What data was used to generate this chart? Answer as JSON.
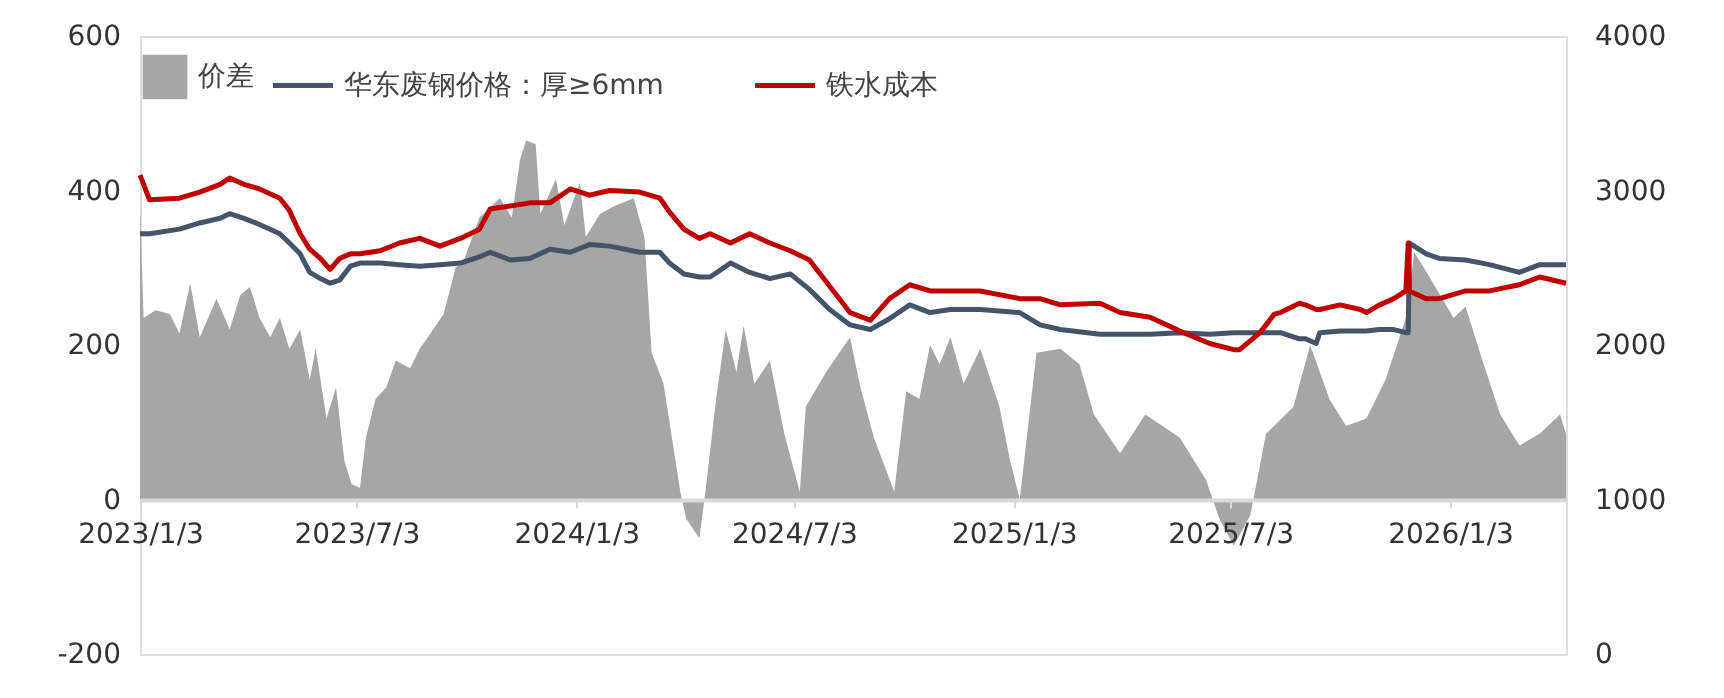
{
  "chart_data": {
    "type": "area",
    "legend": "top",
    "ylim": [
      -200,
      600
    ],
    "yticks": [
      -200,
      0,
      200,
      400,
      600
    ],
    "y2lim": [
      0,
      4000
    ],
    "y2ticks": [
      0,
      1000,
      2000,
      3000,
      4000
    ],
    "xlim": [
      "2023-01-03",
      "2026-04-10"
    ],
    "xticks": [
      {
        "value": "2023-01-03",
        "label": "2023/1/3"
      },
      {
        "value": "2023-07-03",
        "label": "2023/7/3"
      },
      {
        "value": "2024-01-03",
        "label": "2024/1/3"
      },
      {
        "value": "2024-07-03",
        "label": "2024/7/3"
      },
      {
        "value": "2025-01-03",
        "label": "2025/1/3"
      },
      {
        "value": "2025-07-03",
        "label": "2025/7/3"
      },
      {
        "value": "2026-01-03",
        "label": "2026/1/3"
      }
    ],
    "series": [
      {
        "name": "价差",
        "color": "#a6a6a6",
        "x": [
          "2023-01-03",
          "2023-01-06",
          "2023-01-16",
          "2023-01-28",
          "2023-02-05",
          "2023-02-14",
          "2023-02-22",
          "2023-03-08",
          "2023-03-19",
          "2023-03-28",
          "2023-04-05",
          "2023-04-13",
          "2023-04-22",
          "2023-04-30",
          "2023-05-08",
          "2023-05-17",
          "2023-05-25",
          "2023-05-30",
          "2023-06-08",
          "2023-06-16",
          "2023-06-23",
          "2023-06-29",
          "2023-07-06",
          "2023-07-11",
          "2023-07-19",
          "2023-07-28",
          "2023-08-05",
          "2023-08-17",
          "2023-08-25",
          "2023-09-03",
          "2023-09-14",
          "2023-09-24",
          "2023-10-01",
          "2023-10-14",
          "2023-10-31",
          "2023-11-10",
          "2023-11-17",
          "2023-11-22",
          "2023-11-30",
          "2023-12-04",
          "2023-12-17",
          "2023-12-24",
          "2024-01-06",
          "2024-01-11",
          "2024-01-23",
          "2024-02-04",
          "2024-02-20",
          "2024-02-29",
          "2024-03-06",
          "2024-03-16",
          "2024-03-30",
          "2024-04-04",
          "2024-04-15",
          "2024-04-20",
          "2024-04-29",
          "2024-05-07",
          "2024-05-16",
          "2024-05-22",
          "2024-05-31",
          "2024-06-13",
          "2024-06-25",
          "2024-07-08",
          "2024-07-13",
          "2024-07-30",
          "2024-08-19",
          "2024-08-27",
          "2024-09-08",
          "2024-09-25",
          "2024-10-05",
          "2024-10-16",
          "2024-10-25",
          "2024-11-02",
          "2024-11-11",
          "2024-11-22",
          "2024-12-06",
          "2024-12-22",
          "2024-12-31",
          "2025-01-08",
          "2025-01-22",
          "2025-02-11",
          "2025-02-27",
          "2025-03-11",
          "2025-04-02",
          "2025-04-23",
          "2025-05-22",
          "2025-06-13",
          "2025-06-24",
          "2025-07-06",
          "2025-07-20",
          "2025-08-02",
          "2025-08-25",
          "2025-09-08",
          "2025-09-24",
          "2025-10-08",
          "2025-10-25",
          "2025-11-10",
          "2025-11-27",
          "2025-12-04",
          "2025-12-14",
          "2026-01-06",
          "2026-01-16",
          "2026-01-28",
          "2026-02-14",
          "2026-03-02",
          "2026-03-19",
          "2026-04-05",
          "2026-04-10"
        ],
        "values": [
          380,
          235,
          245,
          240,
          215,
          280,
          210,
          260,
          220,
          265,
          275,
          235,
          210,
          235,
          195,
          220,
          155,
          195,
          105,
          145,
          50,
          20,
          15,
          80,
          130,
          145,
          180,
          170,
          195,
          215,
          240,
          300,
          310,
          365,
          390,
          365,
          440,
          465,
          460,
          370,
          415,
          355,
          410,
          340,
          370,
          380,
          390,
          340,
          190,
          150,
          10,
          -25,
          -50,
          10,
          130,
          220,
          165,
          225,
          150,
          180,
          85,
          10,
          120,
          165,
          210,
          150,
          80,
          10,
          140,
          130,
          200,
          175,
          210,
          150,
          195,
          120,
          50,
          0,
          190,
          195,
          175,
          110,
          60,
          110,
          80,
          25,
          -25,
          -60,
          -20,
          85,
          120,
          200,
          130,
          95,
          105,
          155,
          235,
          320,
          295,
          235,
          250,
          190,
          110,
          70,
          85,
          110,
          85
        ]
      },
      {
        "name": "华东废钢价格：厚≥6mm",
        "type": "line",
        "axis": "y2",
        "color": "#44546a",
        "x": [
          "2023-01-03",
          "2023-01-11",
          "2023-02-05",
          "2023-02-22",
          "2023-03-11",
          "2023-03-19",
          "2023-03-31",
          "2023-04-13",
          "2023-04-30",
          "2023-05-08",
          "2023-05-17",
          "2023-05-25",
          "2023-06-03",
          "2023-06-11",
          "2023-06-19",
          "2023-06-28",
          "2023-07-06",
          "2023-07-23",
          "2023-08-08",
          "2023-08-25",
          "2023-09-11",
          "2023-09-28",
          "2023-10-14",
          "2023-10-23",
          "2023-11-09",
          "2023-11-25",
          "2023-12-12",
          "2023-12-29",
          "2024-01-14",
          "2024-01-31",
          "2024-02-25",
          "2024-03-13",
          "2024-03-21",
          "2024-04-02",
          "2024-04-15",
          "2024-04-24",
          "2024-05-11",
          "2024-05-27",
          "2024-06-13",
          "2024-06-30",
          "2024-07-16",
          "2024-08-02",
          "2024-08-19",
          "2024-09-05",
          "2024-09-21",
          "2024-10-08",
          "2024-10-25",
          "2024-11-11",
          "2024-12-06",
          "2025-01-08",
          "2025-01-25",
          "2025-02-11",
          "2025-03-16",
          "2025-04-02",
          "2025-04-27",
          "2025-05-22",
          "2025-06-16",
          "2025-07-06",
          "2025-07-11",
          "2025-07-28",
          "2025-08-09",
          "2025-08-14",
          "2025-08-30",
          "2025-09-04",
          "2025-09-13",
          "2025-09-16",
          "2025-10-03",
          "2025-10-20",
          "2025-10-25",
          "2025-11-05",
          "2025-11-17",
          "2025-11-27",
          "2025-11-29",
          "2025-11-30",
          "2025-12-14",
          "2025-12-25",
          "2026-01-16",
          "2026-02-05",
          "2026-03-02",
          "2026-03-19",
          "2026-04-10"
        ],
        "values": [
          2720,
          2720,
          2750,
          2790,
          2820,
          2850,
          2820,
          2780,
          2720,
          2660,
          2590,
          2470,
          2430,
          2400,
          2420,
          2510,
          2530,
          2530,
          2520,
          2510,
          2520,
          2530,
          2570,
          2600,
          2550,
          2560,
          2620,
          2600,
          2650,
          2640,
          2600,
          2600,
          2530,
          2460,
          2440,
          2440,
          2530,
          2470,
          2430,
          2460,
          2360,
          2230,
          2130,
          2100,
          2170,
          2260,
          2210,
          2230,
          2230,
          2210,
          2130,
          2100,
          2070,
          2070,
          2070,
          2080,
          2070,
          2080,
          2080,
          2080,
          2080,
          2080,
          2040,
          2040,
          2010,
          2080,
          2090,
          2090,
          2090,
          2100,
          2100,
          2080,
          2080,
          2660,
          2590,
          2560,
          2550,
          2520,
          2470,
          2520,
          2520
        ]
      },
      {
        "name": "铁水成本",
        "type": "line",
        "axis": "y2",
        "color": "#c00000",
        "x": [
          "2023-01-03",
          "2023-01-11",
          "2023-02-05",
          "2023-02-22",
          "2023-03-11",
          "2023-03-19",
          "2023-03-31",
          "2023-04-13",
          "2023-04-30",
          "2023-05-08",
          "2023-05-17",
          "2023-05-25",
          "2023-06-03",
          "2023-06-11",
          "2023-06-19",
          "2023-06-28",
          "2023-07-06",
          "2023-07-23",
          "2023-08-08",
          "2023-08-25",
          "2023-09-11",
          "2023-09-28",
          "2023-10-14",
          "2023-10-23",
          "2023-11-09",
          "2023-11-25",
          "2023-12-12",
          "2023-12-29",
          "2024-01-14",
          "2024-01-31",
          "2024-02-25",
          "2024-03-13",
          "2024-03-21",
          "2024-04-02",
          "2024-04-15",
          "2024-04-24",
          "2024-05-11",
          "2024-05-27",
          "2024-06-13",
          "2024-06-30",
          "2024-07-16",
          "2024-08-02",
          "2024-08-19",
          "2024-09-05",
          "2024-09-21",
          "2024-10-08",
          "2024-10-25",
          "2024-11-11",
          "2024-12-06",
          "2025-01-08",
          "2025-01-25",
          "2025-02-11",
          "2025-03-16",
          "2025-04-02",
          "2025-04-27",
          "2025-05-22",
          "2025-06-16",
          "2025-07-06",
          "2025-07-11",
          "2025-07-28",
          "2025-08-09",
          "2025-08-14",
          "2025-08-30",
          "2025-09-04",
          "2025-09-13",
          "2025-09-16",
          "2025-10-03",
          "2025-10-20",
          "2025-10-25",
          "2025-11-05",
          "2025-11-17",
          "2025-11-27",
          "2025-11-29",
          "2025-11-30",
          "2025-12-14",
          "2025-12-25",
          "2026-01-16",
          "2026-02-05",
          "2026-03-02",
          "2026-03-19",
          "2026-04-10"
        ],
        "values": [
          3100,
          2940,
          2950,
          2990,
          3040,
          3080,
          3040,
          3010,
          2950,
          2870,
          2720,
          2620,
          2560,
          2490,
          2560,
          2590,
          2590,
          2610,
          2660,
          2690,
          2640,
          2690,
          2750,
          2880,
          2900,
          2920,
          2920,
          3010,
          2970,
          3000,
          2990,
          2950,
          2860,
          2750,
          2690,
          2720,
          2660,
          2720,
          2660,
          2610,
          2550,
          2380,
          2210,
          2160,
          2300,
          2390,
          2350,
          2350,
          2350,
          2300,
          2300,
          2260,
          2270,
          2210,
          2180,
          2090,
          2010,
          1970,
          1970,
          2080,
          2200,
          2210,
          2270,
          2260,
          2230,
          2230,
          2260,
          2230,
          2210,
          2260,
          2300,
          2350,
          2660,
          2350,
          2300,
          2300,
          2350,
          2350,
          2390,
          2440,
          2400
        ]
      }
    ]
  }
}
